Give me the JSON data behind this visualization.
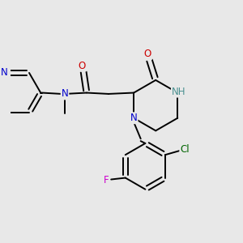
{
  "background_color": "#e8e8e8",
  "figure_size": [
    3.0,
    3.0
  ],
  "dpi": 100,
  "bond_color": "#000000",
  "N_color": "#0000cc",
  "NH_color": "#4a9090",
  "O_color": "#cc0000",
  "Cl_color": "#006400",
  "F_color": "#cc00cc",
  "label_fontsize": 8.5,
  "lw": 1.4,
  "xlim": [
    -0.5,
    9.5
  ],
  "ylim": [
    -4.5,
    5.5
  ]
}
